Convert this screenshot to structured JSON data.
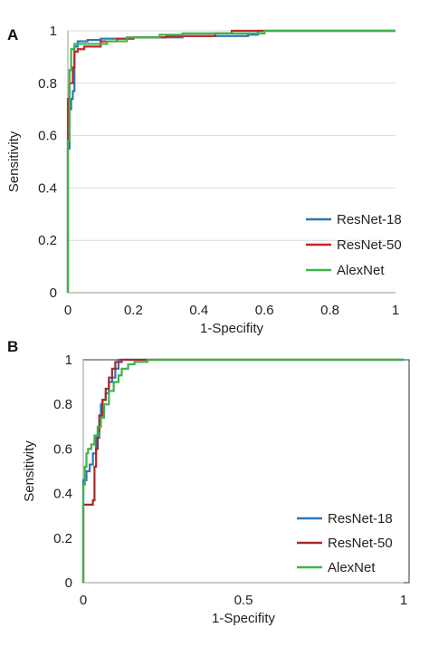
{
  "chart_data": [
    {
      "type": "line",
      "panel_label": "A",
      "xlabel": "1-Specifity",
      "ylabel": "Sensitivity",
      "xlim": [
        0,
        1
      ],
      "ylim": [
        0,
        1
      ],
      "x_ticks": [
        "0",
        "0.2",
        "0.4",
        "0.6",
        "0.8",
        "1"
      ],
      "y_ticks": [
        "0",
        "0.2",
        "0.4",
        "0.6",
        "0.8",
        "1"
      ],
      "grid": "horizontal",
      "legend_position": "bottom-right",
      "series": [
        {
          "name": "ResNet-18",
          "color": "#2e75b6",
          "points": [
            [
              0,
              0
            ],
            [
              0,
              0.55
            ],
            [
              0.005,
              0.55
            ],
            [
              0.005,
              0.7
            ],
            [
              0.01,
              0.7
            ],
            [
              0.01,
              0.74
            ],
            [
              0.015,
              0.74
            ],
            [
              0.015,
              0.77
            ],
            [
              0.02,
              0.77
            ],
            [
              0.02,
              0.94
            ],
            [
              0.03,
              0.94
            ],
            [
              0.03,
              0.96
            ],
            [
              0.06,
              0.96
            ],
            [
              0.06,
              0.965
            ],
            [
              0.1,
              0.965
            ],
            [
              0.1,
              0.97
            ],
            [
              0.2,
              0.97
            ],
            [
              0.2,
              0.975
            ],
            [
              0.35,
              0.975
            ],
            [
              0.35,
              0.98
            ],
            [
              0.55,
              0.98
            ],
            [
              0.55,
              0.985
            ],
            [
              0.58,
              0.985
            ],
            [
              0.58,
              1
            ],
            [
              1,
              1
            ]
          ]
        },
        {
          "name": "ResNet-50",
          "color": "#c0282d",
          "points": [
            [
              0,
              0
            ],
            [
              0,
              0.74
            ],
            [
              0.005,
              0.74
            ],
            [
              0.005,
              0.8
            ],
            [
              0.015,
              0.8
            ],
            [
              0.015,
              0.86
            ],
            [
              0.02,
              0.86
            ],
            [
              0.02,
              0.92
            ],
            [
              0.03,
              0.92
            ],
            [
              0.03,
              0.93
            ],
            [
              0.05,
              0.93
            ],
            [
              0.05,
              0.94
            ],
            [
              0.1,
              0.94
            ],
            [
              0.1,
              0.96
            ],
            [
              0.15,
              0.96
            ],
            [
              0.15,
              0.97
            ],
            [
              0.2,
              0.97
            ],
            [
              0.2,
              0.975
            ],
            [
              0.3,
              0.975
            ],
            [
              0.3,
              0.98
            ],
            [
              0.45,
              0.98
            ],
            [
              0.45,
              0.99
            ],
            [
              0.5,
              0.99
            ],
            [
              0.5,
              1
            ],
            [
              1,
              1
            ]
          ]
        },
        {
          "name": "AlexNet",
          "color": "#3cb44b",
          "points": [
            [
              0,
              0
            ],
            [
              0,
              0.58
            ],
            [
              0.005,
              0.58
            ],
            [
              0.005,
              0.85
            ],
            [
              0.01,
              0.85
            ],
            [
              0.01,
              0.93
            ],
            [
              0.02,
              0.93
            ],
            [
              0.02,
              0.95
            ],
            [
              0.12,
              0.95
            ],
            [
              0.12,
              0.96
            ],
            [
              0.18,
              0.96
            ],
            [
              0.18,
              0.975
            ],
            [
              0.28,
              0.975
            ],
            [
              0.28,
              0.985
            ],
            [
              0.35,
              0.985
            ],
            [
              0.35,
              0.99
            ],
            [
              0.6,
              0.99
            ],
            [
              0.6,
              1
            ],
            [
              1,
              1
            ]
          ]
        }
      ]
    },
    {
      "type": "line",
      "panel_label": "B",
      "xlabel": "1-Specifity",
      "ylabel": "Sensitivity",
      "xlim": [
        0,
        1
      ],
      "ylim": [
        0,
        1
      ],
      "x_ticks": [
        "0",
        "0.5",
        "1"
      ],
      "y_ticks": [
        "0",
        "0.2",
        "0.4",
        "0.6",
        "0.8",
        "1"
      ],
      "grid": "none",
      "legend_position": "bottom-right",
      "series": [
        {
          "name": "ResNet-18",
          "color": "#2e75b6",
          "points": [
            [
              0,
              0
            ],
            [
              0,
              0.46
            ],
            [
              0.01,
              0.46
            ],
            [
              0.01,
              0.5
            ],
            [
              0.02,
              0.5
            ],
            [
              0.02,
              0.53
            ],
            [
              0.03,
              0.53
            ],
            [
              0.03,
              0.58
            ],
            [
              0.04,
              0.58
            ],
            [
              0.04,
              0.65
            ],
            [
              0.05,
              0.65
            ],
            [
              0.05,
              0.72
            ],
            [
              0.055,
              0.72
            ],
            [
              0.055,
              0.8
            ],
            [
              0.06,
              0.8
            ],
            [
              0.06,
              0.82
            ],
            [
              0.07,
              0.82
            ],
            [
              0.07,
              0.85
            ],
            [
              0.08,
              0.85
            ],
            [
              0.08,
              0.9
            ],
            [
              0.09,
              0.9
            ],
            [
              0.09,
              0.92
            ],
            [
              0.1,
              0.92
            ],
            [
              0.1,
              0.96
            ],
            [
              0.11,
              0.96
            ],
            [
              0.11,
              1
            ],
            [
              1,
              1
            ]
          ]
        },
        {
          "name": "ResNet-50",
          "color": "#a52a2a",
          "points": [
            [
              0,
              0
            ],
            [
              0,
              0.35
            ],
            [
              0.03,
              0.35
            ],
            [
              0.03,
              0.37
            ],
            [
              0.035,
              0.37
            ],
            [
              0.035,
              0.52
            ],
            [
              0.04,
              0.52
            ],
            [
              0.04,
              0.6
            ],
            [
              0.045,
              0.6
            ],
            [
              0.045,
              0.68
            ],
            [
              0.05,
              0.68
            ],
            [
              0.05,
              0.75
            ],
            [
              0.06,
              0.75
            ],
            [
              0.06,
              0.82
            ],
            [
              0.07,
              0.82
            ],
            [
              0.07,
              0.87
            ],
            [
              0.08,
              0.87
            ],
            [
              0.08,
              0.92
            ],
            [
              0.09,
              0.92
            ],
            [
              0.09,
              0.96
            ],
            [
              0.1,
              0.96
            ],
            [
              0.1,
              0.99
            ],
            [
              0.12,
              0.99
            ],
            [
              0.12,
              1
            ],
            [
              1,
              1
            ]
          ]
        },
        {
          "name": "AlexNet",
          "color": "#3cb44b",
          "points": [
            [
              0,
              0
            ],
            [
              0,
              0.44
            ],
            [
              0.005,
              0.44
            ],
            [
              0.005,
              0.52
            ],
            [
              0.01,
              0.52
            ],
            [
              0.01,
              0.58
            ],
            [
              0.015,
              0.58
            ],
            [
              0.015,
              0.6
            ],
            [
              0.025,
              0.6
            ],
            [
              0.025,
              0.62
            ],
            [
              0.035,
              0.62
            ],
            [
              0.035,
              0.66
            ],
            [
              0.045,
              0.66
            ],
            [
              0.045,
              0.7
            ],
            [
              0.055,
              0.7
            ],
            [
              0.055,
              0.74
            ],
            [
              0.065,
              0.74
            ],
            [
              0.065,
              0.8
            ],
            [
              0.08,
              0.8
            ],
            [
              0.08,
              0.86
            ],
            [
              0.095,
              0.86
            ],
            [
              0.095,
              0.9
            ],
            [
              0.11,
              0.9
            ],
            [
              0.11,
              0.93
            ],
            [
              0.12,
              0.93
            ],
            [
              0.12,
              0.96
            ],
            [
              0.14,
              0.96
            ],
            [
              0.14,
              0.98
            ],
            [
              0.16,
              0.98
            ],
            [
              0.16,
              0.99
            ],
            [
              0.2,
              0.99
            ],
            [
              0.2,
              1
            ],
            [
              1,
              1
            ]
          ]
        }
      ]
    }
  ]
}
